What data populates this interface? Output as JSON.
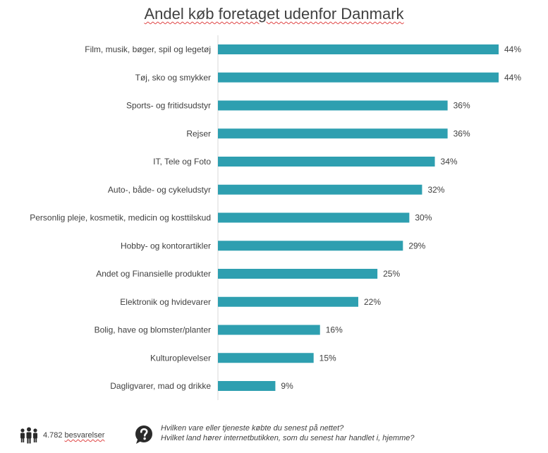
{
  "chart_data": {
    "type": "bar",
    "orientation": "horizontal",
    "title": "Andel køb foretaget udenfor Danmark",
    "categories": [
      "Film, musik, bøger, spil og legetøj",
      "Tøj, sko og smykker",
      "Sports- og fritidsudstyr",
      "Rejser",
      "IT, Tele og Foto",
      "Auto-, både- og cykeludstyr",
      "Personlig pleje, kosmetik, medicin og kosttilskud",
      "Hobby- og kontorartikler",
      "Andet og Finansielle produkter",
      "Elektronik og hvidevarer",
      "Bolig, have og blomster/planter",
      "Kulturoplevelser",
      "Dagligvarer, mad og drikke"
    ],
    "values": [
      44,
      44,
      36,
      36,
      34,
      32,
      30,
      29,
      25,
      22,
      16,
      15,
      9
    ],
    "data_labels": [
      "44%",
      "44%",
      "36%",
      "36%",
      "34%",
      "32%",
      "30%",
      "29%",
      "25%",
      "22%",
      "16%",
      "15%",
      "9%"
    ],
    "xlabel": "",
    "ylabel": "",
    "xlim": [
      0,
      44
    ],
    "grid": false,
    "bar_color": "#2e9fb0"
  },
  "footer": {
    "respondents_count": "4.782",
    "respondents_label": "besvarelser",
    "people_icon": "people-group-icon",
    "question_icon": "question-bubble-icon",
    "question_line1": "Hvilken vare eller tjeneste købte du senest på nettet?",
    "question_line2": "Hvilket land hører internetbutikken, som du senest har handlet i, hjemme?"
  }
}
